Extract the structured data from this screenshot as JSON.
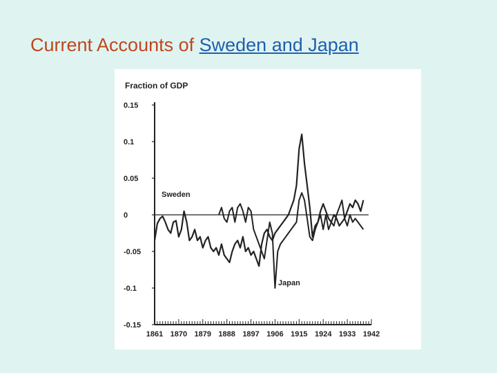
{
  "slide": {
    "title_prefix": "Current Accounts of ",
    "title_link": "Sweden and Japan"
  },
  "colors": {
    "background": "#dff4f1",
    "title": "#c0461e",
    "link": "#1f5fae",
    "lines": "#222222"
  },
  "chart_data": {
    "type": "line",
    "title": "",
    "xlabel": "",
    "ylabel": "Fraction of GDP",
    "xlim": [
      1861,
      1942
    ],
    "ylim": [
      -0.15,
      0.15
    ],
    "x_ticks": [
      1861,
      1870,
      1879,
      1888,
      1897,
      1906,
      1915,
      1924,
      1933,
      1942
    ],
    "y_ticks": [
      {
        "value": 0.15,
        "label": "0.15"
      },
      {
        "value": 0.1,
        "label": "0.1"
      },
      {
        "value": 0.05,
        "label": "0.05"
      },
      {
        "value": 0,
        "label": "0"
      },
      {
        "value": -0.05,
        "label": "-0.05"
      },
      {
        "value": -0.1,
        "label": "-0.1"
      },
      {
        "value": -0.15,
        "label": "-0.15"
      }
    ],
    "zero_line": true,
    "grid": false,
    "series": [
      {
        "name": "Sweden",
        "x": [
          1861,
          1862,
          1863,
          1864,
          1865,
          1866,
          1867,
          1868,
          1869,
          1870,
          1871,
          1872,
          1873,
          1874,
          1875,
          1876,
          1877,
          1878,
          1879,
          1880,
          1881,
          1882,
          1883,
          1884,
          1885,
          1886,
          1887,
          1888,
          1889,
          1890,
          1891,
          1892,
          1893,
          1894,
          1895,
          1896,
          1897,
          1898,
          1899,
          1900,
          1901,
          1902,
          1903,
          1904,
          1905,
          1906,
          1907,
          1908,
          1909,
          1910,
          1911,
          1912,
          1913,
          1914,
          1915,
          1916,
          1917,
          1918,
          1919,
          1920,
          1921,
          1922,
          1923,
          1924,
          1925,
          1926,
          1927,
          1928,
          1929,
          1930,
          1931,
          1932,
          1933,
          1934,
          1935,
          1936,
          1937,
          1938,
          1939
        ],
        "values": [
          -0.035,
          -0.012,
          -0.005,
          -0.002,
          -0.01,
          -0.02,
          -0.025,
          -0.01,
          -0.008,
          -0.03,
          -0.02,
          0.005,
          -0.01,
          -0.035,
          -0.03,
          -0.02,
          -0.035,
          -0.03,
          -0.045,
          -0.035,
          -0.03,
          -0.045,
          -0.05,
          -0.045,
          -0.055,
          -0.04,
          -0.055,
          -0.06,
          -0.065,
          -0.05,
          -0.04,
          -0.035,
          -0.045,
          -0.03,
          -0.05,
          -0.045,
          -0.055,
          -0.05,
          -0.06,
          -0.07,
          -0.04,
          -0.025,
          -0.02,
          -0.03,
          -0.035,
          -0.025,
          -0.02,
          -0.015,
          -0.01,
          -0.005,
          0.0,
          0.01,
          0.02,
          0.04,
          0.09,
          0.11,
          0.07,
          0.04,
          0.01,
          -0.03,
          -0.015,
          -0.01,
          0.005,
          0.015,
          0.005,
          -0.005,
          -0.01,
          0.0,
          -0.005,
          -0.015,
          -0.01,
          -0.005,
          0.005,
          0.015,
          0.01,
          0.02,
          0.015,
          0.005,
          0.02
        ]
      },
      {
        "name": "Japan",
        "x": [
          1885,
          1886,
          1887,
          1888,
          1889,
          1890,
          1891,
          1892,
          1893,
          1894,
          1895,
          1896,
          1897,
          1898,
          1899,
          1900,
          1901,
          1902,
          1903,
          1904,
          1905,
          1906,
          1907,
          1908,
          1909,
          1910,
          1911,
          1912,
          1913,
          1914,
          1915,
          1916,
          1917,
          1918,
          1919,
          1920,
          1921,
          1922,
          1923,
          1924,
          1925,
          1926,
          1927,
          1928,
          1929,
          1930,
          1931,
          1932,
          1933,
          1934,
          1935,
          1936,
          1937,
          1938,
          1939
        ],
        "values": [
          0.0,
          0.01,
          -0.005,
          -0.01,
          0.005,
          0.01,
          -0.01,
          0.01,
          0.015,
          0.005,
          -0.01,
          0.01,
          0.005,
          -0.02,
          -0.03,
          -0.04,
          -0.05,
          -0.06,
          -0.035,
          -0.01,
          -0.025,
          -0.1,
          -0.05,
          -0.04,
          -0.035,
          -0.03,
          -0.025,
          -0.02,
          -0.015,
          -0.01,
          0.02,
          0.03,
          0.02,
          -0.005,
          -0.03,
          -0.035,
          -0.02,
          -0.01,
          0.0,
          -0.02,
          0.0,
          -0.02,
          -0.01,
          -0.015,
          0.0,
          0.01,
          0.02,
          -0.005,
          -0.015,
          0.0,
          -0.01,
          -0.005,
          -0.01,
          -0.015,
          -0.02
        ]
      }
    ]
  }
}
